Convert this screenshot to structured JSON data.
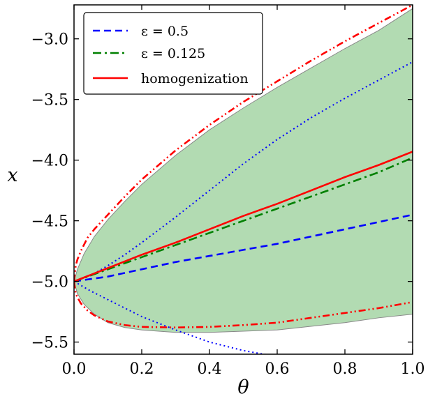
{
  "chart_data": {
    "type": "line",
    "xlabel": "θ",
    "ylabel": "x",
    "xlim": [
      0.0,
      1.0
    ],
    "ylim": [
      -5.6,
      -2.72
    ],
    "xticks": [
      0.0,
      0.2,
      0.4,
      0.6,
      0.8,
      1.0
    ],
    "xtick_labels": [
      "0.0",
      "0.2",
      "0.4",
      "0.6",
      "0.8",
      "1.0"
    ],
    "yticks": [
      -5.5,
      -5.0,
      -4.5,
      -4.0,
      -3.5,
      -3.0
    ],
    "ytick_labels": [
      "−5.5",
      "−5.0",
      "−4.5",
      "−4.0",
      "−3.5",
      "−3.0"
    ],
    "grid": false,
    "legend_position": "top-left",
    "legend": [
      {
        "label": "ε = 0.5",
        "color": "#0000ff",
        "dash": "dashed"
      },
      {
        "label": "ε = 0.125",
        "color": "#008000",
        "dash": "dashdot"
      },
      {
        "label": "homogenization",
        "color": "#ff0000",
        "dash": "solid"
      }
    ],
    "band": {
      "color": "#b2dbb2",
      "edge_color": "#888888",
      "upper": {
        "x": [
          0.0,
          0.01,
          0.03,
          0.06,
          0.1,
          0.15,
          0.2,
          0.3,
          0.4,
          0.5,
          0.6,
          0.7,
          0.8,
          0.9,
          1.0
        ],
        "y": [
          -5.0,
          -4.9,
          -4.77,
          -4.63,
          -4.49,
          -4.34,
          -4.2,
          -3.96,
          -3.75,
          -3.57,
          -3.4,
          -3.24,
          -3.08,
          -2.93,
          -2.75
        ]
      },
      "lower": {
        "x": [
          0.0,
          0.01,
          0.03,
          0.06,
          0.1,
          0.15,
          0.2,
          0.3,
          0.4,
          0.5,
          0.6,
          0.7,
          0.8,
          0.9,
          1.0
        ],
        "y": [
          -5.0,
          -5.1,
          -5.19,
          -5.27,
          -5.34,
          -5.38,
          -5.4,
          -5.42,
          -5.42,
          -5.41,
          -5.4,
          -5.37,
          -5.34,
          -5.3,
          -5.27
        ]
      }
    },
    "series": [
      {
        "name": "ε = 0.5",
        "color": "#0000ff",
        "dash": "dashed",
        "x": [
          0.0,
          0.1,
          0.2,
          0.3,
          0.4,
          0.5,
          0.6,
          0.7,
          0.8,
          0.9,
          1.0
        ],
        "y": [
          -5.0,
          -4.96,
          -4.9,
          -4.84,
          -4.79,
          -4.74,
          -4.69,
          -4.63,
          -4.57,
          -4.51,
          -4.45
        ]
      },
      {
        "name": "ε = 0.125",
        "color": "#008000",
        "dash": "dashdot",
        "x": [
          0.0,
          0.1,
          0.2,
          0.3,
          0.4,
          0.5,
          0.6,
          0.7,
          0.8,
          0.9,
          1.0
        ],
        "y": [
          -5.0,
          -4.9,
          -4.8,
          -4.7,
          -4.6,
          -4.5,
          -4.4,
          -4.3,
          -4.2,
          -4.1,
          -3.98
        ]
      },
      {
        "name": "homogenization",
        "color": "#ff0000",
        "dash": "solid",
        "x": [
          0.0,
          0.1,
          0.2,
          0.3,
          0.4,
          0.5,
          0.6,
          0.7,
          0.8,
          0.9,
          1.0
        ],
        "y": [
          -5.0,
          -4.89,
          -4.78,
          -4.68,
          -4.57,
          -4.46,
          -4.36,
          -4.25,
          -4.14,
          -4.04,
          -3.93
        ]
      },
      {
        "color": "#0000ff",
        "dash": "dotted",
        "x": [
          0.0,
          0.05,
          0.1,
          0.15,
          0.2,
          0.3,
          0.4,
          0.5,
          0.6,
          0.7,
          0.8,
          0.9,
          1.0
        ],
        "y": [
          -5.0,
          -4.95,
          -4.87,
          -4.78,
          -4.68,
          -4.47,
          -4.25,
          -4.03,
          -3.83,
          -3.65,
          -3.49,
          -3.34,
          -3.19
        ]
      },
      {
        "color": "#0000ff",
        "dash": "dotted",
        "x": [
          0.0,
          0.05,
          0.1,
          0.15,
          0.2,
          0.3,
          0.4,
          0.5,
          0.6
        ],
        "y": [
          -5.0,
          -5.08,
          -5.15,
          -5.22,
          -5.29,
          -5.4,
          -5.5,
          -5.57,
          -5.62
        ]
      },
      {
        "color": "#ff0000",
        "dash": "dashdotdot",
        "x": [
          0.0,
          0.005,
          0.01,
          0.02,
          0.04,
          0.06,
          0.1,
          0.15,
          0.2,
          0.3,
          0.4,
          0.5,
          0.6,
          0.7,
          0.8,
          0.9,
          1.0
        ],
        "y": [
          -5.0,
          -4.87,
          -4.82,
          -4.75,
          -4.64,
          -4.57,
          -4.45,
          -4.3,
          -4.16,
          -3.92,
          -3.71,
          -3.52,
          -3.35,
          -3.18,
          -3.02,
          -2.87,
          -2.72
        ]
      },
      {
        "color": "#ff0000",
        "dash": "dashdotdot",
        "x": [
          0.0,
          0.005,
          0.01,
          0.02,
          0.04,
          0.06,
          0.1,
          0.15,
          0.2,
          0.3,
          0.4,
          0.5,
          0.6,
          0.7,
          0.8,
          0.9,
          1.0
        ],
        "y": [
          -5.0,
          -5.1,
          -5.13,
          -5.18,
          -5.24,
          -5.28,
          -5.33,
          -5.36,
          -5.375,
          -5.38,
          -5.375,
          -5.36,
          -5.34,
          -5.3,
          -5.26,
          -5.22,
          -5.17
        ]
      }
    ]
  }
}
